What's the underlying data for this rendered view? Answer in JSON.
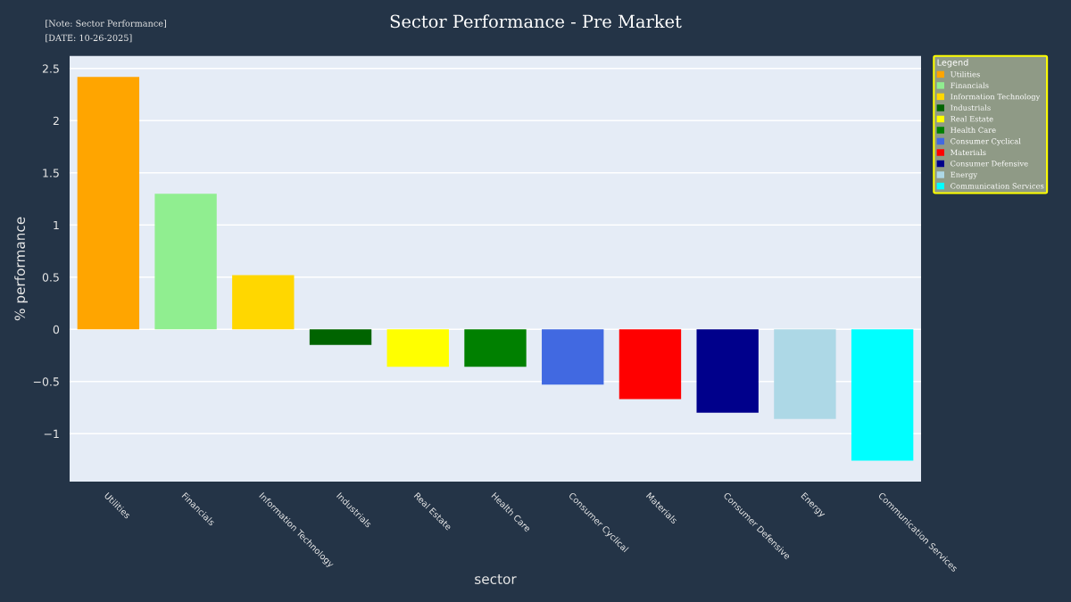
{
  "chart_data": {
    "type": "bar",
    "title": "Sector Performance - Pre Market",
    "xlabel": "sector",
    "ylabel": "% performance",
    "legend_title": "Legend",
    "annotations": [
      "[Note: Sector Performance]",
      "[DATE: 10-26-2025]"
    ],
    "categories": [
      "Utilities",
      "Financials",
      "Information Technology",
      "Industrials",
      "Real Estate",
      "Health Care",
      "Consumer Cyclical",
      "Materials",
      "Consumer Defensive",
      "Energy",
      "Communication Services"
    ],
    "series": [
      {
        "name": "Utilities",
        "color": "#ffa500",
        "values": [
          2.42,
          null,
          null,
          null,
          null,
          null,
          null,
          null,
          null,
          null,
          null
        ]
      },
      {
        "name": "Financials",
        "color": "#90ee90",
        "values": [
          null,
          1.3,
          null,
          null,
          null,
          null,
          null,
          null,
          null,
          null,
          null
        ]
      },
      {
        "name": "Information Technology",
        "color": "#ffd700",
        "values": [
          null,
          null,
          0.52,
          null,
          null,
          null,
          null,
          null,
          null,
          null,
          null
        ]
      },
      {
        "name": "Industrials",
        "color": "#006400",
        "values": [
          null,
          null,
          null,
          -0.15,
          null,
          null,
          null,
          null,
          null,
          null,
          null
        ]
      },
      {
        "name": "Real Estate",
        "color": "#ffff00",
        "values": [
          null,
          null,
          null,
          null,
          -0.36,
          null,
          null,
          null,
          null,
          null,
          null
        ]
      },
      {
        "name": "Health Care",
        "color": "#008000",
        "values": [
          null,
          null,
          null,
          null,
          null,
          -0.36,
          null,
          null,
          null,
          null,
          null
        ]
      },
      {
        "name": "Consumer Cyclical",
        "color": "#4169e1",
        "values": [
          null,
          null,
          null,
          null,
          null,
          null,
          -0.53,
          null,
          null,
          null,
          null
        ]
      },
      {
        "name": "Materials",
        "color": "#ff0000",
        "values": [
          null,
          null,
          null,
          null,
          null,
          null,
          null,
          -0.67,
          null,
          null,
          null
        ]
      },
      {
        "name": "Consumer Defensive",
        "color": "#00008b",
        "values": [
          null,
          null,
          null,
          null,
          null,
          null,
          null,
          null,
          -0.8,
          null,
          null
        ]
      },
      {
        "name": "Energy",
        "color": "#add8e6",
        "values": [
          null,
          null,
          null,
          null,
          null,
          null,
          null,
          null,
          null,
          -0.86,
          null
        ]
      },
      {
        "name": "Communication Services",
        "color": "#00ffff",
        "values": [
          null,
          null,
          null,
          null,
          null,
          null,
          null,
          null,
          null,
          null,
          -1.26
        ]
      }
    ],
    "ylim": [
      -1.46,
      2.62
    ],
    "yticks": [
      {
        "value": -1,
        "label": "−1"
      },
      {
        "value": -0.5,
        "label": "−0.5"
      },
      0,
      0.5,
      1,
      1.5,
      2,
      2.5
    ],
    "grid": "y",
    "legend": "top right"
  }
}
